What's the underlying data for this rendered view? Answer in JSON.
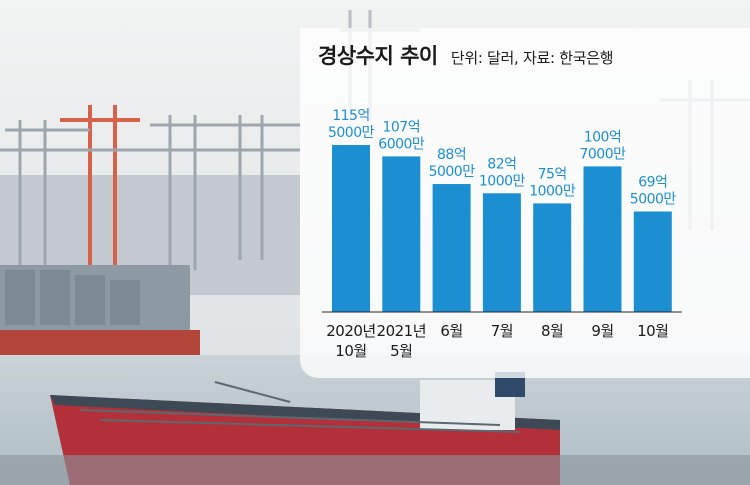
{
  "chart_data": {
    "type": "bar",
    "title": "경상수지 추이",
    "subtitle": "단위: 달러, 자료: 한국은행",
    "categories": [
      [
        "2020년",
        "10월"
      ],
      [
        "2021년",
        "5월"
      ],
      [
        "6월"
      ],
      [
        "7월"
      ],
      [
        "8월"
      ],
      [
        "9월"
      ],
      [
        "10월"
      ]
    ],
    "values": [
      11550000000,
      10760000000,
      8850000000,
      8210000000,
      7510000000,
      10070000000,
      6950000000
    ],
    "value_labels": [
      [
        "115억",
        "5000만"
      ],
      [
        "107억",
        "6000만"
      ],
      [
        "88억",
        "5000만"
      ],
      [
        "82억",
        "1000만"
      ],
      [
        "75억",
        "1000만"
      ],
      [
        "100억",
        "7000만"
      ],
      [
        "69억",
        "5000만"
      ]
    ],
    "bar_color": "#1c8fd3",
    "grid": false,
    "legend": "none"
  }
}
